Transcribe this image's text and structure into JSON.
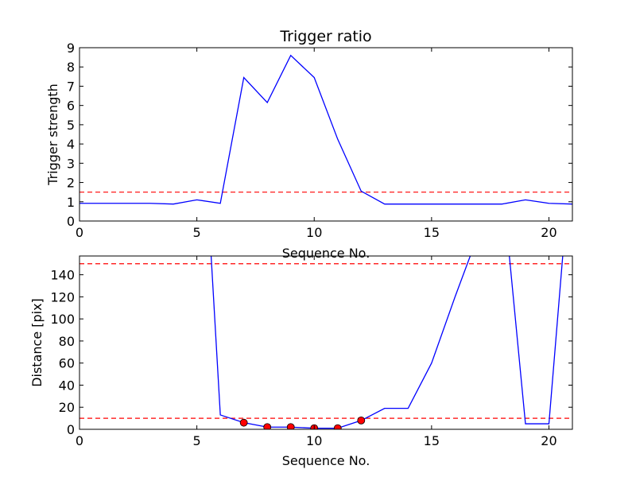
{
  "chart_data": [
    {
      "type": "line",
      "title": "Trigger ratio",
      "xlabel": "Sequence No.",
      "ylabel": "Trigger strength",
      "xlim": [
        0,
        21
      ],
      "ylim": [
        0,
        9
      ],
      "x_ticks": [
        0,
        5,
        10,
        15,
        20
      ],
      "y_ticks": [
        0,
        1,
        2,
        3,
        4,
        5,
        6,
        7,
        8,
        9
      ],
      "grid": false,
      "series": [
        {
          "color": "#0000ff",
          "x": [
            0,
            1,
            2,
            3,
            4,
            5,
            6,
            7,
            8,
            9,
            10,
            11,
            12,
            13,
            14,
            15,
            16,
            17,
            18,
            19,
            20,
            21
          ],
          "y": [
            0.92,
            0.92,
            0.92,
            0.92,
            0.88,
            1.1,
            0.92,
            7.45,
            6.15,
            8.6,
            7.45,
            4.25,
            1.55,
            0.88,
            0.88,
            0.88,
            0.88,
            0.88,
            0.88,
            1.1,
            0.92,
            0.88
          ]
        }
      ],
      "threshold_lines": [
        {
          "y": 1.5,
          "color": "#ff0000",
          "style": "dashed"
        }
      ]
    },
    {
      "type": "line",
      "title": "",
      "xlabel": "Sequence No.",
      "ylabel": "Distance [pix]",
      "xlim": [
        0,
        21
      ],
      "ylim": [
        0,
        157
      ],
      "x_ticks": [
        0,
        5,
        10,
        15,
        20
      ],
      "y_ticks": [
        0,
        20,
        40,
        60,
        80,
        100,
        120,
        140
      ],
      "grid": false,
      "series": [
        {
          "color": "#0000ff",
          "x": [
            5.6,
            6,
            7,
            8,
            9,
            10,
            11,
            12,
            13,
            14,
            15,
            16,
            16.7,
            18.3,
            19,
            20,
            20.6
          ],
          "y": [
            160,
            13,
            6,
            2,
            2,
            1,
            1,
            8,
            19,
            19,
            60,
            120,
            160,
            160,
            5,
            5,
            160
          ]
        }
      ],
      "markers": {
        "color": "#ff0000",
        "x": [
          7,
          8,
          9,
          10,
          11,
          12
        ],
        "y": [
          6,
          2,
          2,
          1,
          1,
          8
        ]
      },
      "threshold_lines": [
        {
          "y": 150,
          "color": "#ff0000",
          "style": "dashed"
        },
        {
          "y": 10,
          "color": "#ff0000",
          "style": "dashed"
        }
      ]
    }
  ]
}
